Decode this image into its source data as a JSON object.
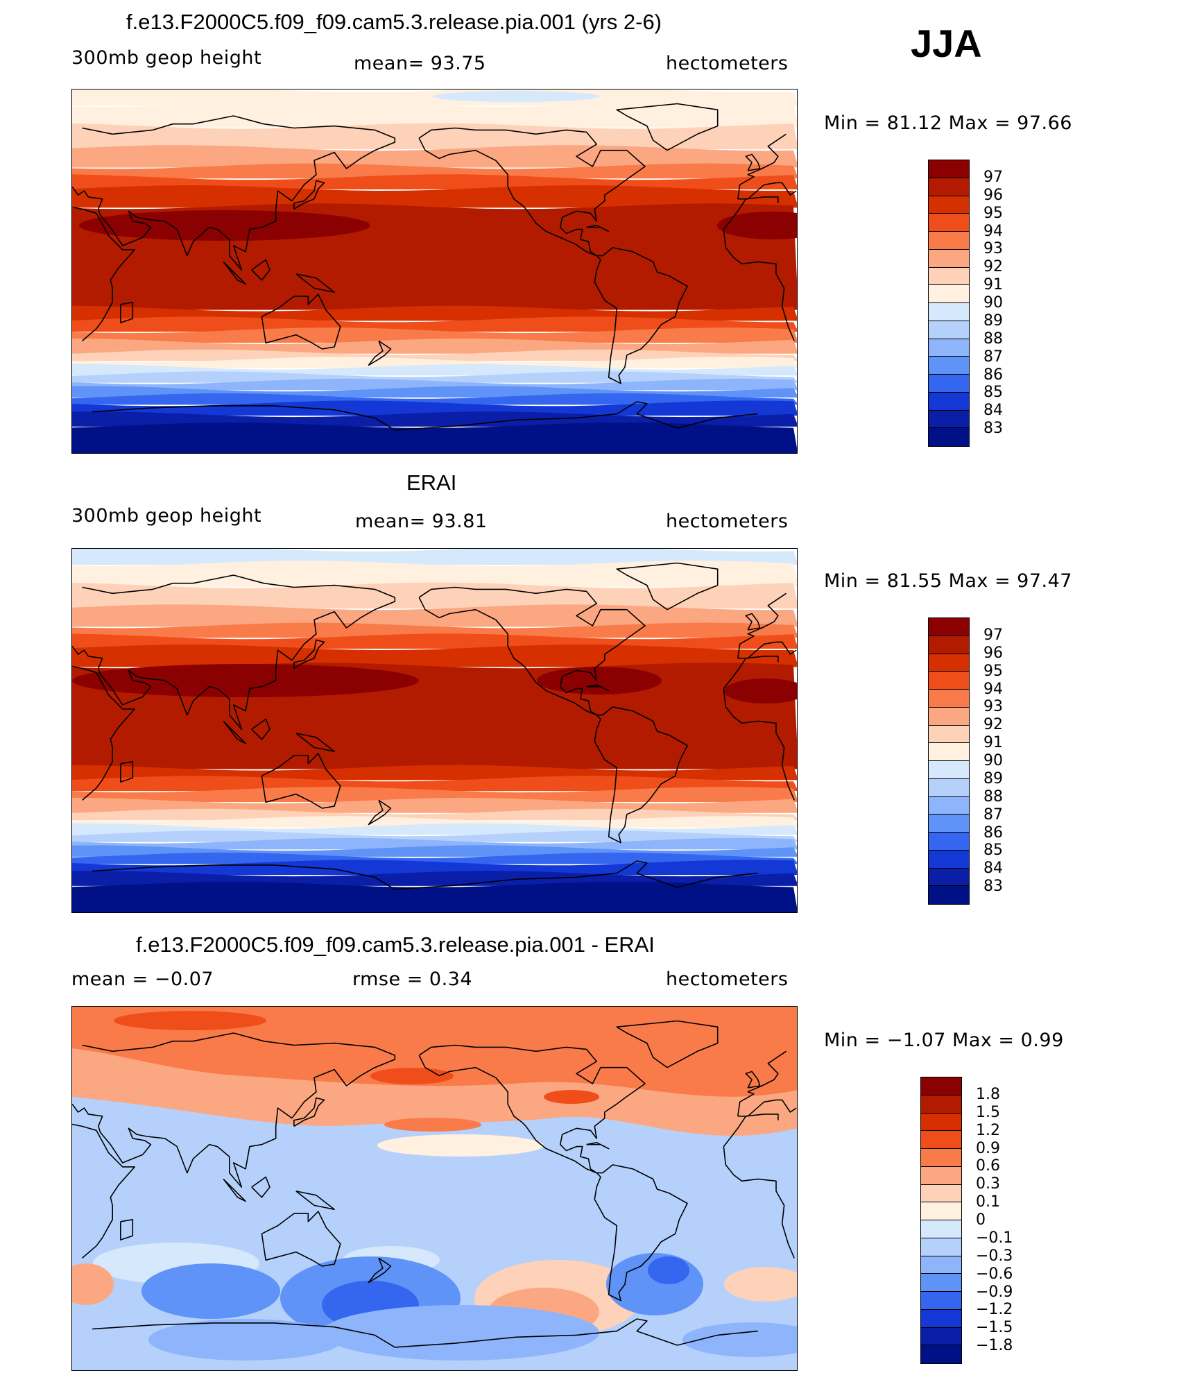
{
  "season": "JJA",
  "panels": [
    {
      "title": "f.e13.F2000C5.f09_f09.cam5.3.release.pia.001 (yrs 2-6)",
      "left_label": "300mb  geop  height",
      "mid_label": "mean=   93.75",
      "right_label": "hectometers",
      "minmax": "Min  =    81.12  Max  =    97.66",
      "field": "model",
      "colorbar": {
        "labels": [
          "97",
          "96",
          "95",
          "94",
          "93",
          "92",
          "91",
          "90",
          "89",
          "88",
          "87",
          "86",
          "85",
          "84",
          "83"
        ],
        "colors": [
          "#8b0000",
          "#b21b00",
          "#d63000",
          "#ef4e1a",
          "#fa7b4a",
          "#fba882",
          "#fdd2b8",
          "#fff0e0",
          "#d6e8fb",
          "#b5d1fb",
          "#8eb5fb",
          "#5f93f7",
          "#3466f0",
          "#1338d6",
          "#0a1ea8",
          "#001187"
        ]
      }
    },
    {
      "title": "ERAI",
      "left_label": "300mb  geop  height",
      "mid_label": "mean=   93.81",
      "right_label": "hectometers",
      "minmax": "Min  =    81.55  Max  =    97.47",
      "field": "obs",
      "colorbar": {
        "labels": [
          "97",
          "96",
          "95",
          "94",
          "93",
          "92",
          "91",
          "90",
          "89",
          "88",
          "87",
          "86",
          "85",
          "84",
          "83"
        ],
        "colors": [
          "#8b0000",
          "#b21b00",
          "#d63000",
          "#ef4e1a",
          "#fa7b4a",
          "#fba882",
          "#fdd2b8",
          "#fff0e0",
          "#d6e8fb",
          "#b5d1fb",
          "#8eb5fb",
          "#5f93f7",
          "#3466f0",
          "#1338d6",
          "#0a1ea8",
          "#001187"
        ]
      }
    },
    {
      "title": "f.e13.F2000C5.f09_f09.cam5.3.release.pia.001 - ERAI",
      "left_label": "mean  =    −0.07",
      "mid_label": "rmse  =     0.34",
      "right_label": "hectometers",
      "minmax": "Min  =    −1.07  Max  =      0.99",
      "field": "diff",
      "colorbar": {
        "labels": [
          "1.8",
          "1.5",
          "1.2",
          "0.9",
          "0.6",
          "0.3",
          "0.1",
          "0",
          "−0.1",
          "−0.3",
          "−0.6",
          "−0.9",
          "−1.2",
          "−1.5",
          "−1.8"
        ],
        "colors": [
          "#8b0000",
          "#b21b00",
          "#d63000",
          "#ef4e1a",
          "#fa7b4a",
          "#fba882",
          "#fdd2b8",
          "#fff0e0",
          "#d6e8fb",
          "#b5d1fb",
          "#8eb5fb",
          "#5f93f7",
          "#3466f0",
          "#1338d6",
          "#0a1ea8",
          "#001187"
        ]
      }
    }
  ]
}
